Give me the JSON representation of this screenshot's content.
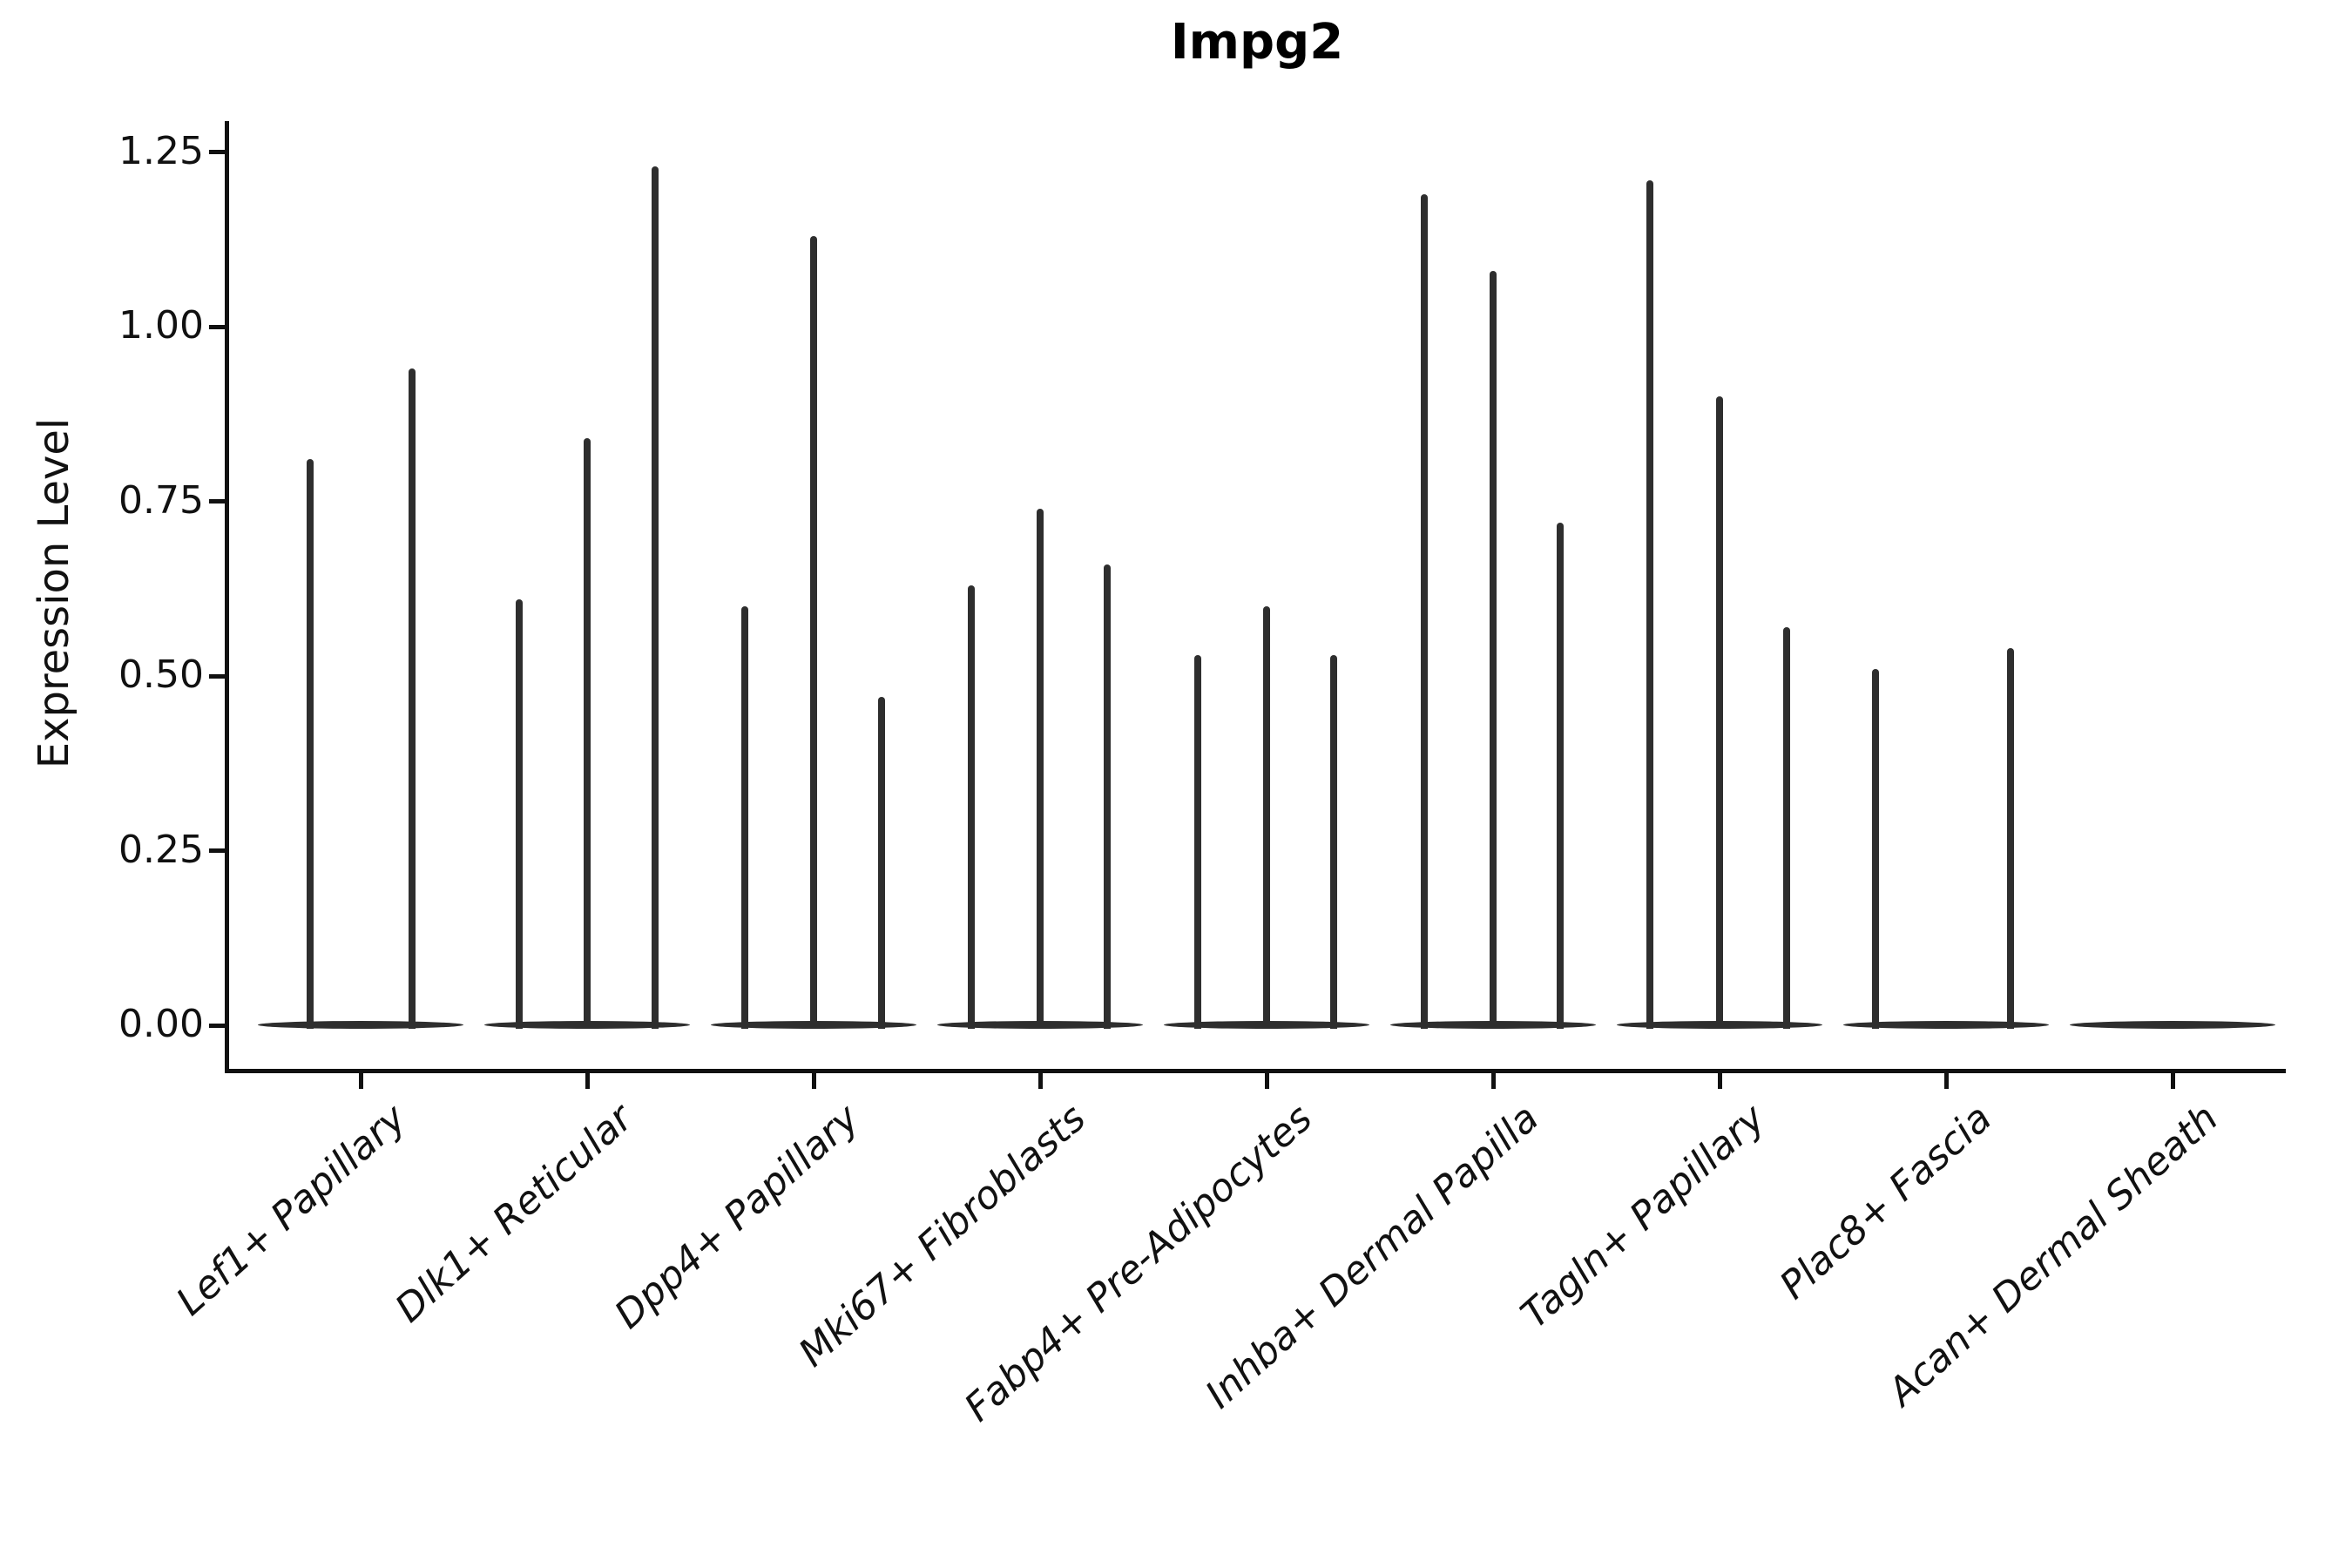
{
  "title": "Impg2",
  "ylabel": "Expression Level",
  "colors": {
    "axis": "#111111",
    "violin": "#2e2e2e",
    "background": "#ffffff"
  },
  "chart_data": {
    "type": "violin",
    "title": "Impg2",
    "xlabel": "",
    "ylabel": "Expression Level",
    "ylim": [
      -0.065,
      1.295
    ],
    "grid": false,
    "legend": "none",
    "yticks": [
      0.0,
      0.25,
      0.5,
      0.75,
      1.0,
      1.25
    ],
    "ytick_labels": [
      "0.00",
      "0.25",
      "0.50",
      "0.75",
      "1.00",
      "1.25"
    ],
    "categories": [
      "Lef1+ Papillary",
      "Dlk1+ Reticular",
      "Dpp4+ Papillary",
      "Mki67+ Fibroblasts",
      "Fabp4+ Pre-Adipocytes",
      "Inhba+ Dermal Papilla",
      "Tagln+ Papillary",
      "Plac8+ Fascia",
      "Acan+ Dermal Sheath"
    ],
    "description": "Very thin violins: dense mass at 0 (flat lens at baseline) with a narrow spike up to the max expression value for each violin.",
    "groups": [
      {
        "category": "Lef1+ Papillary",
        "violins": [
          {
            "offset": -58,
            "max": 0.81
          },
          {
            "offset": 59,
            "max": 0.94
          }
        ]
      },
      {
        "category": "Dlk1+ Reticular",
        "violins": [
          {
            "offset": -78,
            "max": 0.61
          },
          {
            "offset": 0,
            "max": 0.84
          },
          {
            "offset": 78,
            "max": 1.23
          }
        ]
      },
      {
        "category": "Dpp4+ Papillary",
        "violins": [
          {
            "offset": -79,
            "max": 0.6
          },
          {
            "offset": 0,
            "max": 1.13
          },
          {
            "offset": 78,
            "max": 0.47
          }
        ]
      },
      {
        "category": "Mki67+ Fibroblasts",
        "violins": [
          {
            "offset": -79,
            "max": 0.63
          },
          {
            "offset": 0,
            "max": 0.74
          },
          {
            "offset": 77,
            "max": 0.66
          }
        ]
      },
      {
        "category": "Fabp4+ Pre-Adipocytes",
        "violins": [
          {
            "offset": -79,
            "max": 0.53
          },
          {
            "offset": 0,
            "max": 0.6
          },
          {
            "offset": 77,
            "max": 0.53
          }
        ]
      },
      {
        "category": "Inhba+ Dermal Papilla",
        "violins": [
          {
            "offset": -79,
            "max": 1.19
          },
          {
            "offset": 0,
            "max": 1.08
          },
          {
            "offset": 77,
            "max": 0.72
          }
        ]
      },
      {
        "category": "Tagln+ Papillary",
        "violins": [
          {
            "offset": -80,
            "max": 1.21
          },
          {
            "offset": 0,
            "max": 0.9
          },
          {
            "offset": 77,
            "max": 0.57
          }
        ]
      },
      {
        "category": "Plac8+ Fascia",
        "violins": [
          {
            "offset": -81,
            "max": 0.51
          },
          {
            "offset": 74,
            "max": 0.54
          }
        ]
      },
      {
        "category": "Acan+ Dermal Sheath",
        "violins": []
      }
    ]
  }
}
